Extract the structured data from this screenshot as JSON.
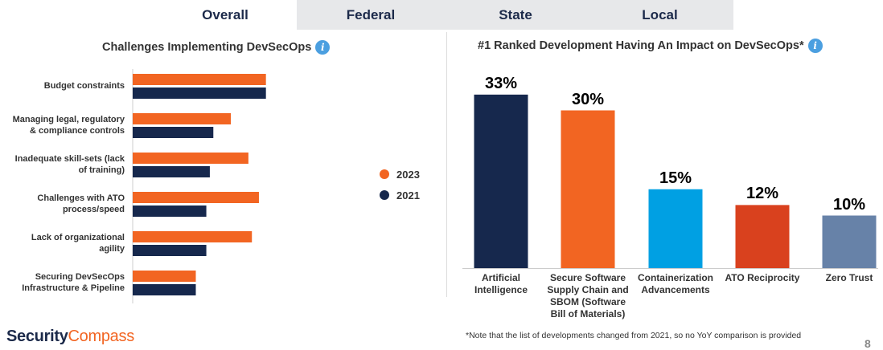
{
  "tabs": [
    {
      "label": "Overall",
      "active": true
    },
    {
      "label": "Federal",
      "active": false
    },
    {
      "label": "State",
      "active": false
    },
    {
      "label": "Local",
      "active": false
    }
  ],
  "colors": {
    "series_2023": "#f26522",
    "series_2021": "#16284d",
    "ai": "#16284d",
    "supply": "#f26522",
    "container": "#00a0e3",
    "ato": "#d9411e",
    "zero": "#6782a8"
  },
  "icons": {
    "info": "info-icon"
  },
  "left_panel": {
    "title": "Challenges Implementing DevSecOps",
    "legend": [
      {
        "name": "2023",
        "color": "#f26522"
      },
      {
        "name": "2021",
        "color": "#16284d"
      }
    ]
  },
  "right_panel": {
    "title": "#1 Ranked Development  Having An Impact on DevSecOps*"
  },
  "chart_data": [
    {
      "type": "bar",
      "orientation": "horizontal",
      "title": "Challenges Implementing DevSecOps",
      "categories": [
        "Budget constraints",
        "Managing legal, regulatory & compliance controls",
        "Inadequate skill-sets (lack of training)",
        "Challenges with ATO process/speed",
        "Lack of organizational agility",
        "Securing DevSecOps Infrastructure & Pipeline"
      ],
      "category_lines": [
        [
          "Budget constraints"
        ],
        [
          "Managing legal, regulatory",
          "& compliance controls"
        ],
        [
          "Inadequate skill-sets (lack",
          "of training)"
        ],
        [
          "Challenges with ATO",
          "process/speed"
        ],
        [
          "Lack of organizational",
          "agility"
        ],
        [
          "Securing DevSecOps",
          "Infrastructure & Pipeline"
        ]
      ],
      "series": [
        {
          "name": "2023",
          "values": [
            38,
            28,
            33,
            36,
            34,
            18
          ]
        },
        {
          "name": "2021",
          "values": [
            38,
            23,
            22,
            21,
            21,
            18
          ]
        }
      ],
      "legend": "right",
      "grid": false
    },
    {
      "type": "bar",
      "title": "#1 Ranked Development  Having An Impact on DevSecOps*",
      "categories": [
        "Artificial Intelligence",
        "Secure Software Supply Chain and SBOM (Software Bill of Materials)",
        "Containerization Advancements",
        "ATO Reciprocity",
        "Zero Trust"
      ],
      "category_lines": [
        [
          "Artificial",
          "Intelligence"
        ],
        [
          "Secure Software",
          "Supply Chain and",
          "SBOM (Software",
          "Bill of Materials)"
        ],
        [
          "Containerization",
          "Advancements"
        ],
        [
          "ATO Reciprocity"
        ],
        [
          "Zero Trust"
        ]
      ],
      "values": [
        33,
        30,
        15,
        12,
        10
      ],
      "labels": [
        "33%",
        "30%",
        "15%",
        "12%",
        "10%"
      ],
      "colors": [
        "#16284d",
        "#f26522",
        "#00a0e3",
        "#d9411e",
        "#6782a8"
      ],
      "grid": false
    }
  ],
  "footer": {
    "logo_part1": "Security",
    "logo_part2": "Compass",
    "footnote": "*Note that the list of developments changed from 2021, so no YoY comparison is provided",
    "page_number": "8"
  }
}
